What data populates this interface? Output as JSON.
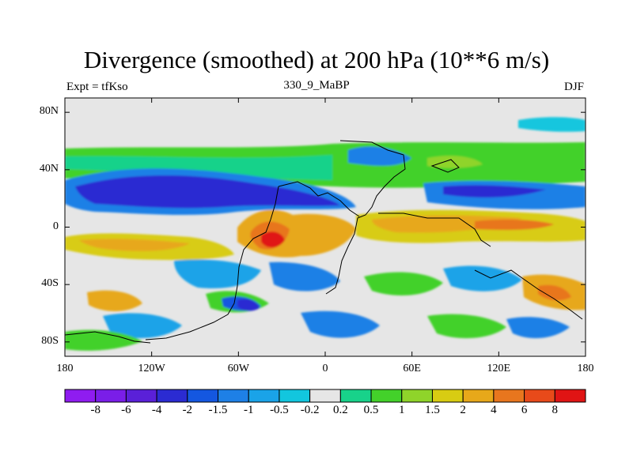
{
  "title": "Divergence (smoothed) at 200 hPa (10**6 m/s)",
  "experiment_label": "Expt = tfKso",
  "case_label": "330_9_MaBP",
  "season_label": "DJF",
  "lat_ticks": [
    "80N",
    "40N",
    "0",
    "40S",
    "80S"
  ],
  "lon_ticks": [
    "180",
    "120W",
    "60W",
    "0",
    "60E",
    "120E",
    "180"
  ],
  "colorbar": {
    "labels": [
      "-8",
      "-6",
      "-4",
      "-2",
      "-1.5",
      "-1",
      "-0.5",
      "-0.2",
      "0.2",
      "0.5",
      "1",
      "1.5",
      "2",
      "4",
      "6",
      "8"
    ],
    "colors": [
      "#8f1cf0",
      "#7a1ee8",
      "#5a20d8",
      "#2b2bd2",
      "#1457e0",
      "#1e80e6",
      "#1aa3e8",
      "#12c6de",
      "#e6e6e6",
      "#18d28a",
      "#43d12a",
      "#8fd42a",
      "#d8cc12",
      "#e7a81a",
      "#e8761e",
      "#e84a1a",
      "#e01414"
    ]
  }
}
